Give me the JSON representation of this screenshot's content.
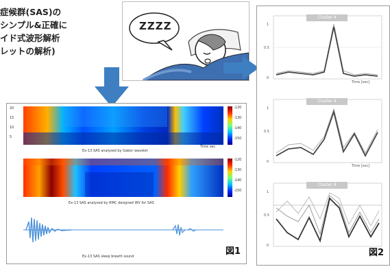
{
  "intro": {
    "line1": "症候群(SAS)の",
    "line2": "シンプル&正確に",
    "line3": "イド式波形解析",
    "line4": "レットの解析)"
  },
  "sleep_panel": {
    "zzz": "ZZZZ"
  },
  "fig1": {
    "label": "図1",
    "spec1_caption": "Ex-13 SAS analyzed by Gabor wavelet",
    "spec2_caption": "Ex-13 SAS analyzed by RMC designed WV for SAS",
    "waveform_caption": "Ex-13 SAS sleep breath sound",
    "time_label": "Time sec",
    "cbar1_ticks": [
      "-120",
      "-130",
      "-140",
      "-150"
    ],
    "cbar2_ticks": [
      "-120",
      "-130",
      "-140",
      "-150"
    ],
    "y_ticks": [
      "20",
      "15",
      "10",
      "5"
    ]
  },
  "fig2": {
    "label": "図2",
    "clusters": [
      {
        "title": "Cluster 4",
        "time_label": "Time [sec]"
      },
      {
        "title": "Cluster 4",
        "time_label": "Time [sec]"
      },
      {
        "title": "Cluster 4",
        "time_label": ""
      }
    ],
    "y_ticks": [
      "1",
      "0.5",
      "0"
    ]
  },
  "colors": {
    "arrow": "#3e7fc1",
    "spec_hot": "#ff2a00",
    "spec_cold": "#0030ff",
    "wave": "#4a90d9"
  },
  "icons": [
    "sleeping-person-icon",
    "down-arrow-icon",
    "right-arrow-icon"
  ]
}
